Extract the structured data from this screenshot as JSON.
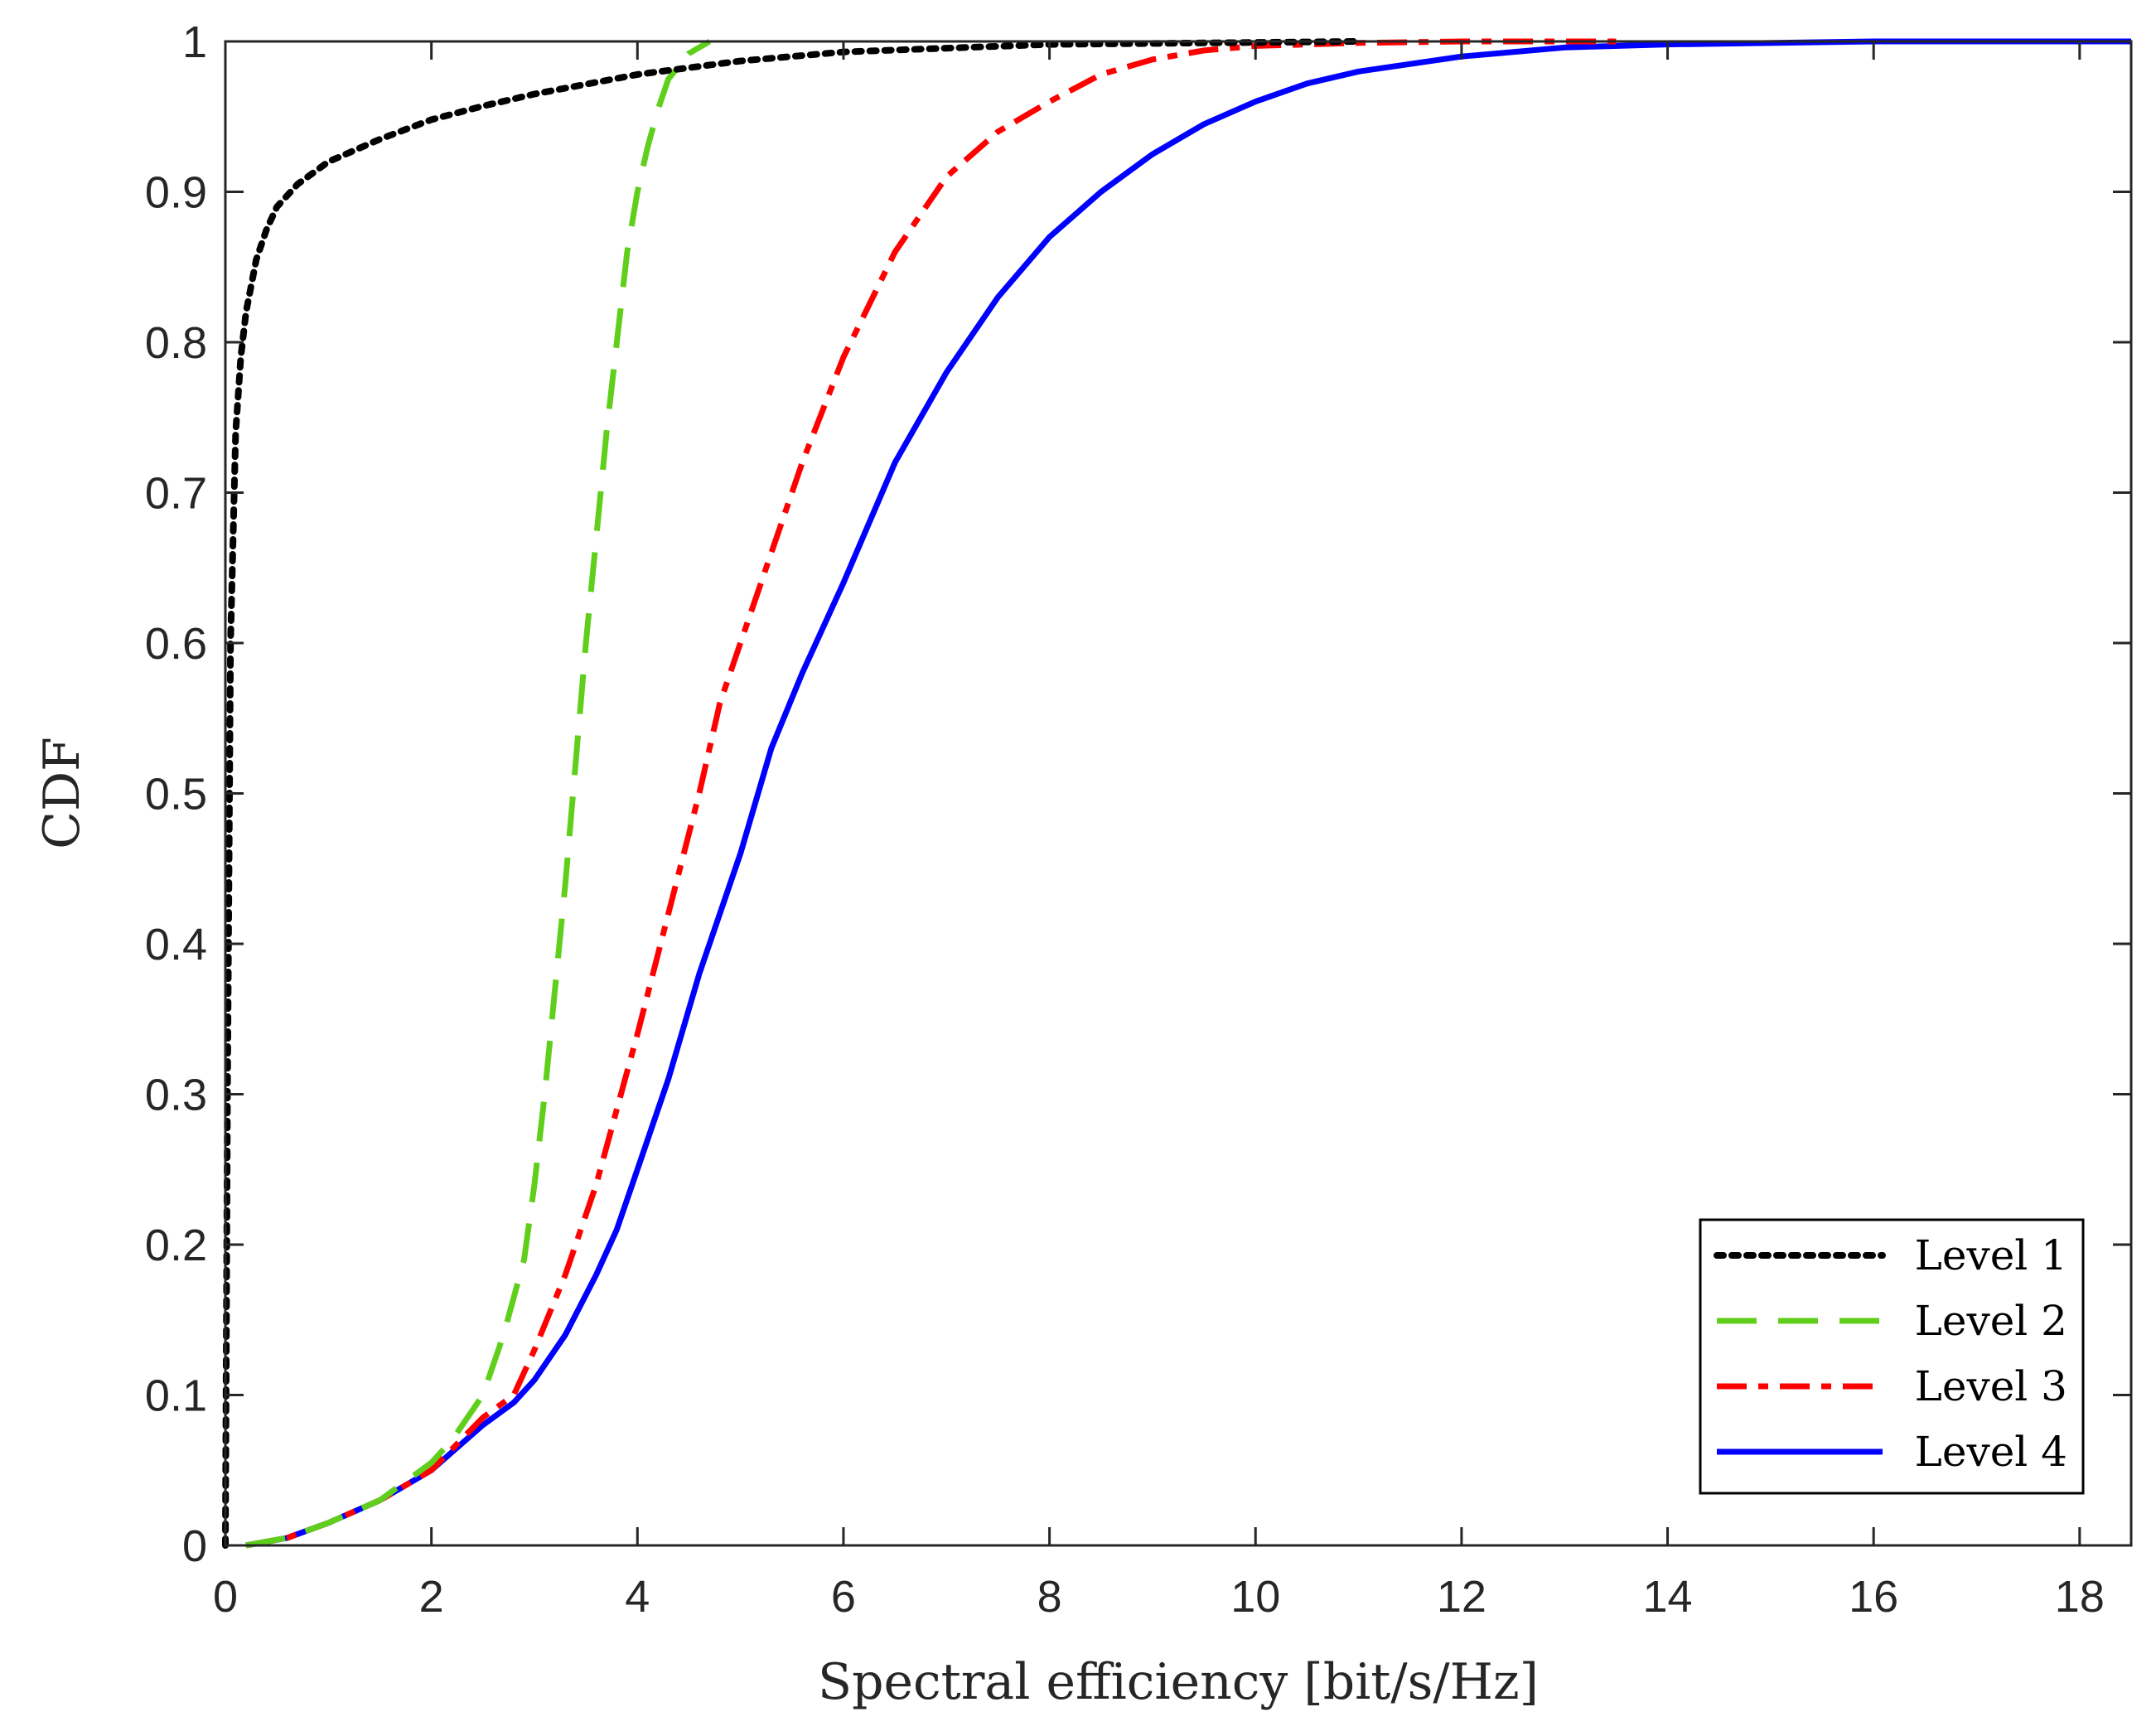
{
  "chart_data": {
    "type": "line",
    "title": "",
    "xlabel": "Spectral efficiency [bit/s/Hz]",
    "ylabel": "CDF",
    "xlim": [
      0,
      18.5
    ],
    "ylim": [
      0,
      1
    ],
    "xticks": [
      0,
      2,
      4,
      6,
      8,
      10,
      12,
      14,
      16,
      18
    ],
    "yticks": [
      0,
      0.1,
      0.2,
      0.3,
      0.4,
      0.5,
      0.6,
      0.7,
      0.8,
      0.9,
      1
    ],
    "xtick_labels": [
      "0",
      "2",
      "4",
      "6",
      "8",
      "10",
      "12",
      "14",
      "16",
      "18"
    ],
    "ytick_labels": [
      "0",
      "0.1",
      "0.2",
      "0.3",
      "0.4",
      "0.5",
      "0.6",
      "0.7",
      "0.8",
      "0.9",
      "1"
    ],
    "grid": false,
    "legend_position": "bottom-right",
    "series": [
      {
        "name": "Level 4",
        "color": "#0000ff",
        "style": "solid",
        "x": [
          0.2,
          0.6,
          1.0,
          1.5,
          2.0,
          2.5,
          2.8,
          3.0,
          3.3,
          3.6,
          3.8,
          4.0,
          4.3,
          4.6,
          5.0,
          5.3,
          5.6,
          6.0,
          6.5,
          7.0,
          7.5,
          8.0,
          8.5,
          9.0,
          9.5,
          10.0,
          10.5,
          11.0,
          12.0,
          13.0,
          14.0,
          16.0,
          18.5
        ],
        "y": [
          0.0,
          0.005,
          0.015,
          0.03,
          0.05,
          0.08,
          0.095,
          0.11,
          0.14,
          0.18,
          0.21,
          0.25,
          0.31,
          0.38,
          0.46,
          0.53,
          0.58,
          0.64,
          0.72,
          0.78,
          0.83,
          0.87,
          0.9,
          0.925,
          0.945,
          0.96,
          0.972,
          0.98,
          0.99,
          0.996,
          0.998,
          1.0,
          1.0
        ]
      },
      {
        "name": "Level 3",
        "color": "#ff0000",
        "style": "dashdot",
        "x": [
          0.2,
          0.6,
          1.0,
          1.5,
          2.0,
          2.5,
          2.8,
          3.0,
          3.3,
          3.6,
          3.8,
          4.0,
          4.3,
          4.6,
          4.8,
          5.0,
          5.3,
          5.6,
          6.0,
          6.5,
          7.0,
          7.5,
          8.0,
          8.5,
          9.0,
          9.5,
          10.0,
          11.0,
          12.0,
          13.5
        ],
        "y": [
          0.0,
          0.005,
          0.015,
          0.03,
          0.05,
          0.085,
          0.1,
          0.13,
          0.18,
          0.24,
          0.29,
          0.34,
          0.42,
          0.5,
          0.56,
          0.6,
          0.66,
          0.72,
          0.79,
          0.86,
          0.91,
          0.94,
          0.96,
          0.978,
          0.988,
          0.994,
          0.997,
          0.999,
          1.0,
          1.0
        ]
      },
      {
        "name": "Level 2",
        "color": "#5fcf1c",
        "style": "dashed",
        "x": [
          0.2,
          0.6,
          1.0,
          1.5,
          2.0,
          2.2,
          2.5,
          2.7,
          2.9,
          3.0,
          3.1,
          3.2,
          3.3,
          3.4,
          3.5,
          3.6,
          3.7,
          3.8,
          3.9,
          4.0,
          4.1,
          4.2,
          4.3,
          4.5,
          4.7
        ],
        "y": [
          0.0,
          0.005,
          0.015,
          0.03,
          0.055,
          0.07,
          0.1,
          0.14,
          0.19,
          0.24,
          0.3,
          0.37,
          0.44,
          0.52,
          0.6,
          0.67,
          0.74,
          0.8,
          0.86,
          0.9,
          0.93,
          0.955,
          0.975,
          0.992,
          1.0
        ]
      },
      {
        "name": "Level 1",
        "color": "#000000",
        "style": "dotted",
        "x": [
          0.0,
          0.02,
          0.05,
          0.1,
          0.15,
          0.2,
          0.3,
          0.4,
          0.5,
          0.7,
          1.0,
          1.5,
          2.0,
          2.5,
          3.0,
          4.0,
          5.0,
          6.0,
          8.0,
          11.0
        ],
        "y": [
          0.0,
          0.3,
          0.6,
          0.74,
          0.79,
          0.82,
          0.855,
          0.875,
          0.89,
          0.905,
          0.92,
          0.935,
          0.948,
          0.957,
          0.965,
          0.978,
          0.987,
          0.993,
          0.998,
          1.0
        ]
      }
    ]
  }
}
